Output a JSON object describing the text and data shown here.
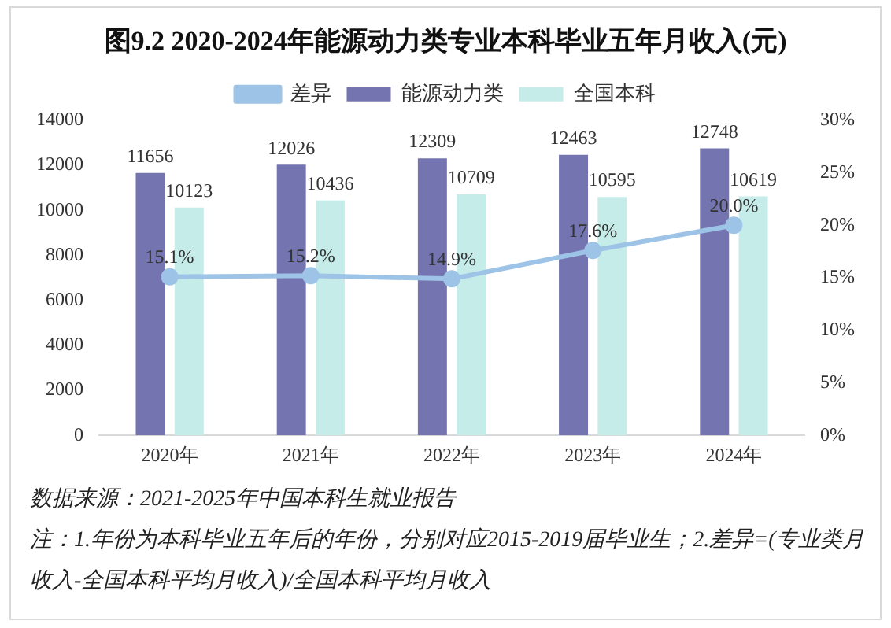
{
  "chart_data": {
    "type": "bar",
    "title": "图9.2 2020-2024年能源动力类专业本科毕业五年月收入(元)",
    "categories": [
      "2020年",
      "2021年",
      "2022年",
      "2023年",
      "2024年"
    ],
    "series": [
      {
        "name": "能源动力类",
        "color": "#7474b0",
        "values": [
          11656,
          12026,
          12309,
          12463,
          12748
        ],
        "value_labels": [
          "11656",
          "12026",
          "12309",
          "12463",
          "12748"
        ]
      },
      {
        "name": "全国本科",
        "color": "#c5ece9",
        "values": [
          10123,
          10436,
          10709,
          10595,
          10619
        ],
        "value_labels": [
          "10123",
          "10436",
          "10709",
          "10595",
          "10619"
        ]
      },
      {
        "name": "差异",
        "type": "line",
        "axis": "y2",
        "color": "#9dc3e6",
        "values": [
          15.1,
          15.2,
          14.9,
          17.6,
          20.0
        ],
        "value_labels": [
          "15.1%",
          "15.2%",
          "14.9%",
          "17.6%",
          "20.0%"
        ]
      }
    ],
    "ylim": [
      0,
      14000
    ],
    "yticks": [
      0,
      2000,
      4000,
      6000,
      8000,
      10000,
      12000,
      14000
    ],
    "y2lim": [
      0,
      30
    ],
    "y2ticks": [
      {
        "value": 0,
        "label": "0%"
      },
      {
        "value": 5,
        "label": "5%"
      },
      {
        "value": 10,
        "label": "10%"
      },
      {
        "value": 15,
        "label": "15%"
      },
      {
        "value": 20,
        "label": "20%"
      },
      {
        "value": 25,
        "label": "25%"
      },
      {
        "value": 30,
        "label": "30%"
      }
    ],
    "grid": false,
    "legend": "top",
    "marker": "circle",
    "annotations": [
      "数据来源：2021-2025年中国本科生就业报告",
      "注：1.年份为本科毕业五年后的年份，分别对应2015-2019届毕业生；2.差异=(专业类月收入-全国本科平均月收入)/全国本科平均月收入"
    ]
  }
}
